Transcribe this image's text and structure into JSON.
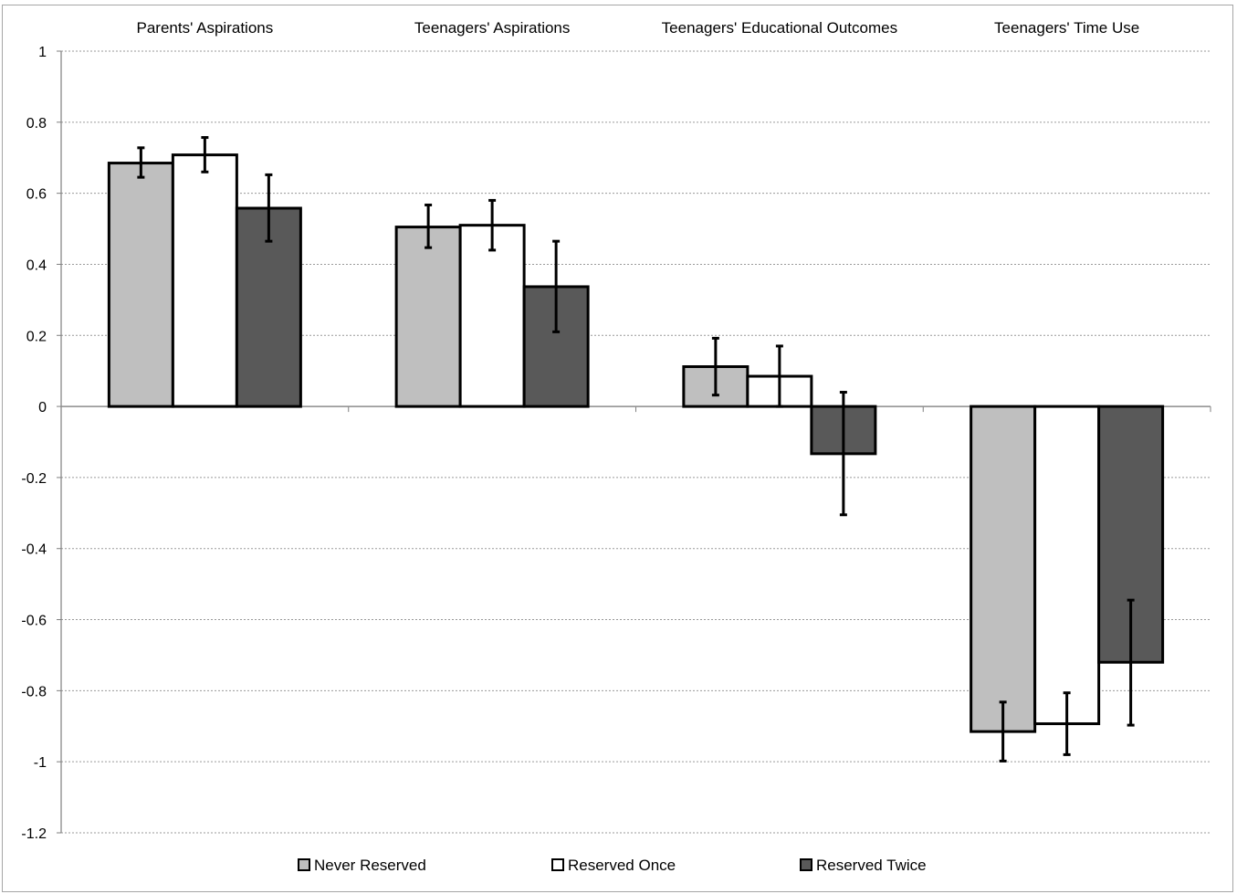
{
  "chart_data": {
    "type": "bar",
    "title": "",
    "xlabel": "",
    "ylabel": "",
    "categories": [
      "Parents' Aspirations",
      "Teenagers' Aspirations",
      "Teenagers' Educational Outcomes",
      "Teenagers' Time Use"
    ],
    "ylim": [
      -1.2,
      1
    ],
    "yticks": [
      1,
      0.8,
      0.6,
      0.4,
      0.2,
      0,
      -0.2,
      -0.4,
      -0.6,
      -0.8,
      -1,
      -1.2
    ],
    "ytick_labels": [
      "1",
      "0.8",
      "0.6",
      "0.4",
      "0.2",
      "0",
      "-0.2",
      "-0.4",
      "-0.6",
      "-0.8",
      "-1",
      "-1.2"
    ],
    "grid": true,
    "legend_position": "bottom",
    "series": [
      {
        "name": "Never Reserved",
        "color": "#bfbfbf",
        "values": [
          0.685,
          0.505,
          0.112,
          -0.915
        ],
        "error_low": [
          0.645,
          0.447,
          0.032,
          -0.998
        ],
        "error_high": [
          0.728,
          0.567,
          0.192,
          -0.832
        ]
      },
      {
        "name": "Reserved Once",
        "color": "#ffffff",
        "values": [
          0.708,
          0.51,
          0.085,
          -0.893
        ],
        "error_low": [
          0.66,
          0.44,
          0.0,
          -0.98
        ],
        "error_high": [
          0.757,
          0.58,
          0.17,
          -0.806
        ]
      },
      {
        "name": "Reserved Twice",
        "color": "#595959",
        "values": [
          0.558,
          0.337,
          -0.133,
          -0.72
        ],
        "error_low": [
          0.465,
          0.21,
          -0.305,
          -0.897
        ],
        "error_high": [
          0.652,
          0.465,
          0.04,
          -0.545
        ]
      }
    ]
  }
}
